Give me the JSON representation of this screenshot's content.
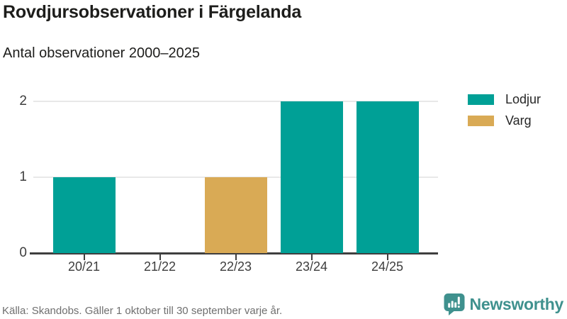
{
  "header": {
    "title": "Rovdjursobservationer i Färgelanda",
    "subtitle": "Antal observationer 2000–2025"
  },
  "chart_data": {
    "type": "bar",
    "title": "Rovdjursobservationer i Färgelanda",
    "subtitle": "Antal observationer 2000–2025",
    "categories": [
      "20/21",
      "21/22",
      "22/23",
      "23/24",
      "24/25"
    ],
    "series": [
      {
        "name": "Lodjur",
        "color": "#00a096",
        "values": [
          1,
          0,
          0,
          2,
          2
        ]
      },
      {
        "name": "Varg",
        "color": "#d9aa55",
        "values": [
          0,
          0,
          1,
          0,
          0
        ]
      }
    ],
    "xlabel": "",
    "ylabel": "",
    "ylim": [
      0,
      2
    ],
    "yticks": [
      0,
      1,
      2
    ],
    "grid": true,
    "legend_position": "right"
  },
  "footer": {
    "source": "Källa: Skandobs. Gäller 1 oktober till 30 september varje år.",
    "brand": "Newsworthy"
  },
  "colors": {
    "lodjur": "#00a096",
    "varg": "#d9aa55",
    "axis": "#3f3f3f",
    "gridline": "#e8e8e8",
    "text_dark": "#1d1d1b",
    "text_muted": "#6f6f6f",
    "brand_teal": "#3f918e"
  },
  "icons": {
    "newsworthy_logo": "speech-bubble-bar-chart-icon"
  }
}
